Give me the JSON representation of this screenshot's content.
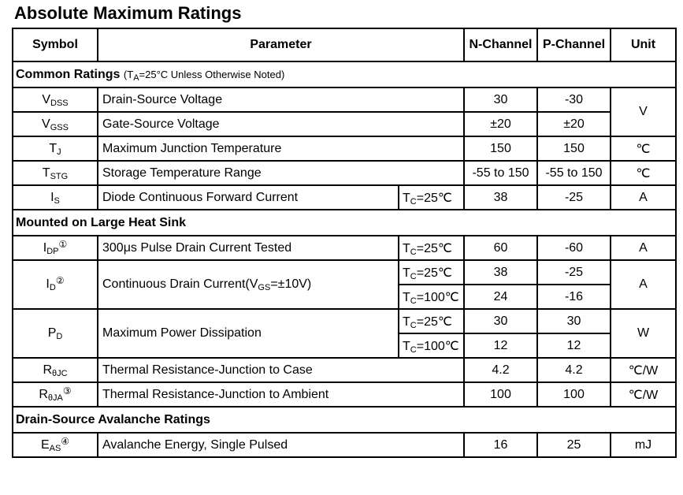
{
  "title": "Absolute Maximum Ratings",
  "headers": {
    "symbol": "Symbol",
    "parameter": "Parameter",
    "n_channel": "N-Channel",
    "p_channel": "P-Channel",
    "unit": "Unit"
  },
  "sections": {
    "common": {
      "title": "Common Ratings",
      "note_open": "(T",
      "note_sub": "A",
      "note_rest": "=25°C Unless Otherwise Noted)"
    },
    "heat_sink": {
      "title": "Mounted on Large Heat Sink"
    },
    "avalanche": {
      "title": "Drain-Source Avalanche Ratings"
    }
  },
  "rows": {
    "vdss": {
      "sym": "V",
      "sub": "DSS",
      "param": "Drain-Source Voltage",
      "n": "30",
      "p": "-30"
    },
    "vgss": {
      "sym": "V",
      "sub": "GSS",
      "param": "Gate-Source Voltage",
      "n": "±20",
      "p": "±20"
    },
    "voltage_unit": "V",
    "tj": {
      "sym": "T",
      "sub": "J",
      "param": "Maximum Junction Temperature",
      "n": "150",
      "p": "150",
      "unit": "℃"
    },
    "tstg": {
      "sym": "T",
      "sub": "STG",
      "param": "Storage Temperature Range",
      "n": "-55 to 150",
      "p": "-55 to 150",
      "unit": "℃"
    },
    "is": {
      "sym": "I",
      "sub": "S",
      "param": "Diode Continuous Forward Current",
      "cond_t": "T",
      "cond_sub": "C",
      "cond_val": "=25℃",
      "n": "38",
      "p": "-25",
      "unit": "A"
    },
    "idp": {
      "sym": "I",
      "sub": "DP",
      "note": "①",
      "param": "300μs Pulse Drain Current Tested",
      "cond_t": "T",
      "cond_sub": "C",
      "cond_val": "=25℃",
      "n": "60",
      "p": "-60",
      "unit": "A"
    },
    "id": {
      "sym": "I",
      "sub": "D",
      "note": "②",
      "param_pre": "Continuous Drain Current(V",
      "param_sub": "GS",
      "param_post": "=±10V)",
      "unit": "A",
      "c1": {
        "cond_t": "T",
        "cond_sub": "C",
        "cond_val": "=25℃",
        "n": "38",
        "p": "-25"
      },
      "c2": {
        "cond_t": "T",
        "cond_sub": "C",
        "cond_val": "=100℃",
        "n": "24",
        "p": "-16"
      }
    },
    "pd": {
      "sym": "P",
      "sub": "D",
      "param": "Maximum Power Dissipation",
      "unit": "W",
      "c1": {
        "cond_t": "T",
        "cond_sub": "C",
        "cond_val": "=25℃",
        "n": "30",
        "p": "30"
      },
      "c2": {
        "cond_t": "T",
        "cond_sub": "C",
        "cond_val": "=100℃",
        "n": "12",
        "p": "12"
      }
    },
    "rthjc": {
      "sym": "R",
      "sub": "θJC",
      "param": "Thermal Resistance-Junction to Case",
      "n": "4.2",
      "p": "4.2",
      "unit": "℃/W"
    },
    "rthja": {
      "sym": "R",
      "sub": "θJA",
      "note": "③",
      "param": "Thermal Resistance-Junction to Ambient",
      "n": "100",
      "p": "100",
      "unit": "℃/W"
    },
    "eas": {
      "sym": "E",
      "sub": "AS",
      "note": "④",
      "param": "Avalanche Energy, Single Pulsed",
      "n": "16",
      "p": "25",
      "unit": "mJ"
    }
  }
}
